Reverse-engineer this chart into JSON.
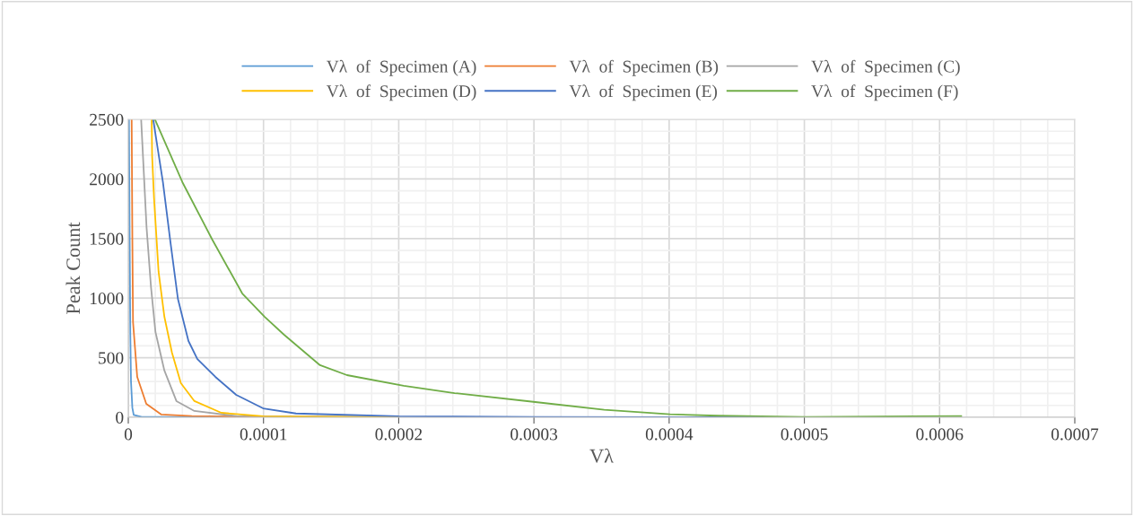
{
  "chart_data": {
    "type": "line",
    "xlabel": "Vλ",
    "ylabel": "Peak Count",
    "xlim": [
      0,
      0.0007
    ],
    "ylim": [
      0,
      2500
    ],
    "xticks": [
      0,
      0.0001,
      0.0002,
      0.0003,
      0.0004,
      0.0005,
      0.0006,
      0.0007
    ],
    "yticks": [
      0,
      500,
      1000,
      1500,
      2000,
      2500
    ],
    "grid": true,
    "legend": "top",
    "marker": "none",
    "line_style": "solid",
    "series": [
      {
        "name": "Vλ  of  Specimen (A)",
        "color": "#5b9bd5",
        "x": [
          5e-07,
          1e-06,
          1.5e-06,
          2e-06,
          3e-06,
          4e-06,
          1e-05,
          0.0002
        ],
        "values": [
          2500,
          1500,
          700,
          300,
          80,
          20,
          3,
          0
        ]
      },
      {
        "name": "Vλ  of  Specimen (B)",
        "color": "#ed7d31",
        "x": [
          2.5e-06,
          3e-06,
          3.5e-06,
          6.6e-06,
          1.33e-05,
          2.45e-05,
          4.7e-05,
          0.0001,
          0.0002
        ],
        "values": [
          2500,
          1500,
          800,
          339,
          113,
          23,
          10,
          3,
          0
        ]
      },
      {
        "name": "Vλ  of  Specimen (C)",
        "color": "#a5a5a5",
        "x": [
          9.5e-06,
          1.35e-05,
          1.68e-05,
          2.01e-05,
          2.67e-05,
          3.56e-05,
          4.89e-05,
          8e-05,
          0.0002
        ],
        "values": [
          2500,
          1596,
          1092,
          715,
          392,
          136,
          53,
          10,
          0
        ]
      },
      {
        "name": "Vλ  of  Specimen (D)",
        "color": "#ffc000",
        "x": [
          1.73e-05,
          1.76e-05,
          1.9e-05,
          2.24e-05,
          2.67e-05,
          3.23e-05,
          3.89e-05,
          4.89e-05,
          6.88e-05,
          0.0001,
          0.0002
        ],
        "values": [
          2500,
          2200,
          1845,
          1220,
          843,
          542,
          286,
          136,
          38,
          8,
          0
        ]
      },
      {
        "name": "Vλ  of  Specimen (E)",
        "color": "#4472c4",
        "x": [
          1.84e-05,
          2.56e-05,
          3.12e-05,
          3.67e-05,
          4e-05,
          4.45e-05,
          5.11e-05,
          6.44e-05,
          7.98e-05,
          9.97e-05,
          0.000124,
          0.0002,
          0.0003,
          0.0005
        ],
        "values": [
          2500,
          1973,
          1468,
          994,
          843,
          640,
          489,
          339,
          188,
          75,
          32,
          8,
          3,
          0
        ]
      },
      {
        "name": "Vλ  of  Specimen (F)",
        "color": "#70ad47",
        "x": [
          1.97e-05,
          4e-05,
          6.21e-05,
          8.43e-05,
          0.0001009,
          0.0001152,
          0.0001418,
          0.0001617,
          0.0002037,
          0.0002413,
          0.000301,
          0.000352,
          0.0004006,
          0.000436,
          0.0005,
          0.000616
        ],
        "values": [
          2500,
          1973,
          1491,
          1039,
          843,
          693,
          437,
          354,
          264,
          203,
          128,
          63,
          25,
          13,
          3,
          10
        ]
      }
    ]
  }
}
